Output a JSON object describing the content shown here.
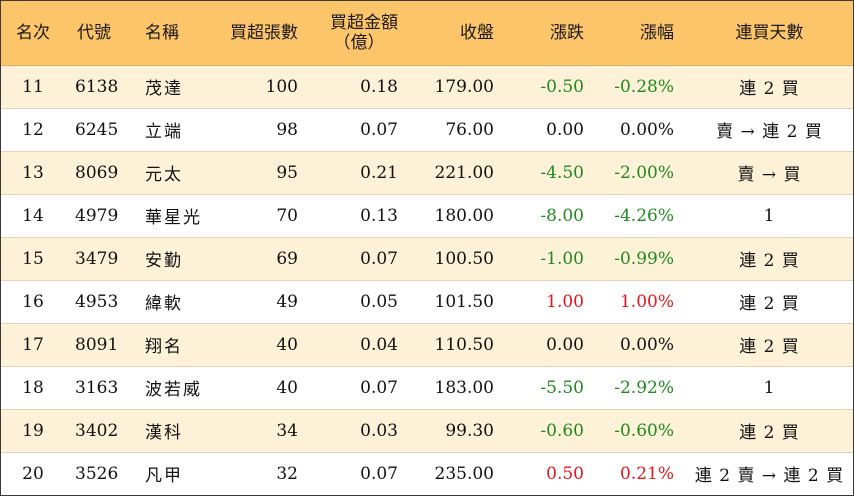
{
  "headers": {
    "rank": "名次",
    "code": "代號",
    "name": "名稱",
    "buy_lots": "買超張數",
    "buy_amount_line1": "買超金額",
    "buy_amount_line2": "（億）",
    "close": "收盤",
    "change": "漲跌",
    "change_pct": "漲幅",
    "buy_days": "連買天數"
  },
  "rows": [
    {
      "rank": "11",
      "code": "6138",
      "name": "茂達",
      "buy_lots": "100",
      "buy_amount": "0.18",
      "close": "179.00",
      "change": "-0.50",
      "change_pct": "-0.28%",
      "buy_days": "連 2 買",
      "direction": "neg"
    },
    {
      "rank": "12",
      "code": "6245",
      "name": "立端",
      "buy_lots": "98",
      "buy_amount": "0.07",
      "close": "76.00",
      "change": "0.00",
      "change_pct": "0.00%",
      "buy_days": "賣 → 連 2 買",
      "direction": "zero"
    },
    {
      "rank": "13",
      "code": "8069",
      "name": "元太",
      "buy_lots": "95",
      "buy_amount": "0.21",
      "close": "221.00",
      "change": "-4.50",
      "change_pct": "-2.00%",
      "buy_days": "賣 → 買",
      "direction": "neg"
    },
    {
      "rank": "14",
      "code": "4979",
      "name": "華星光",
      "buy_lots": "70",
      "buy_amount": "0.13",
      "close": "180.00",
      "change": "-8.00",
      "change_pct": "-4.26%",
      "buy_days": "1",
      "direction": "neg"
    },
    {
      "rank": "15",
      "code": "3479",
      "name": "安勤",
      "buy_lots": "69",
      "buy_amount": "0.07",
      "close": "100.50",
      "change": "-1.00",
      "change_pct": "-0.99%",
      "buy_days": "連 2 買",
      "direction": "neg"
    },
    {
      "rank": "16",
      "code": "4953",
      "name": "緯軟",
      "buy_lots": "49",
      "buy_amount": "0.05",
      "close": "101.50",
      "change": "1.00",
      "change_pct": "1.00%",
      "buy_days": "連 2 買",
      "direction": "pos"
    },
    {
      "rank": "17",
      "code": "8091",
      "name": "翔名",
      "buy_lots": "40",
      "buy_amount": "0.04",
      "close": "110.50",
      "change": "0.00",
      "change_pct": "0.00%",
      "buy_days": "連 2 買",
      "direction": "zero"
    },
    {
      "rank": "18",
      "code": "3163",
      "name": "波若威",
      "buy_lots": "40",
      "buy_amount": "0.07",
      "close": "183.00",
      "change": "-5.50",
      "change_pct": "-2.92%",
      "buy_days": "1",
      "direction": "neg"
    },
    {
      "rank": "19",
      "code": "3402",
      "name": "漢科",
      "buy_lots": "34",
      "buy_amount": "0.03",
      "close": "99.30",
      "change": "-0.60",
      "change_pct": "-0.60%",
      "buy_days": "連 2 買",
      "direction": "neg"
    },
    {
      "rank": "20",
      "code": "3526",
      "name": "凡甲",
      "buy_lots": "32",
      "buy_amount": "0.07",
      "close": "235.00",
      "change": "0.50",
      "change_pct": "0.21%",
      "buy_days": "連 2 賣 → 連 2 買",
      "direction": "pos"
    }
  ],
  "colors": {
    "header_bg": "#fcc56a",
    "alt_row_bg": "#fdf1d7",
    "up": "#e8141b",
    "down": "#1e8a1e",
    "flat": "#111111"
  }
}
